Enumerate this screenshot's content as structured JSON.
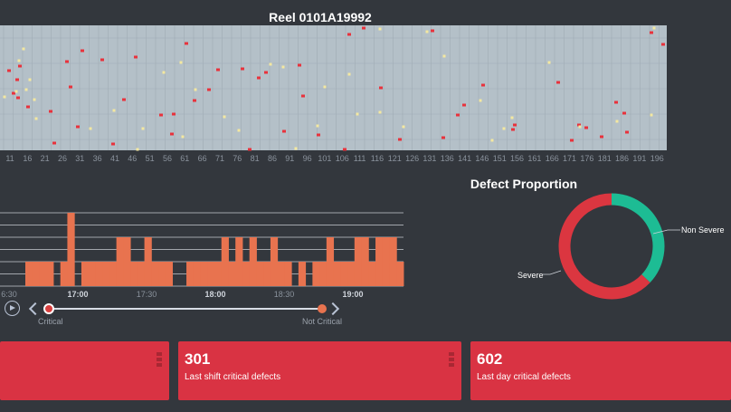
{
  "header": {
    "title": "Reel 0101A19992"
  },
  "reel_chart": {
    "x_ticks": [
      "11",
      "16",
      "21",
      "26",
      "31",
      "36",
      "41",
      "46",
      "51",
      "56",
      "61",
      "66",
      "71",
      "76",
      "81",
      "86",
      "91",
      "96",
      "101",
      "106",
      "111",
      "116",
      "121",
      "126",
      "131",
      "136",
      "141",
      "146",
      "151",
      "156",
      "161",
      "166",
      "171",
      "176",
      "181",
      "186",
      "191",
      "196"
    ],
    "critical_defects": [
      [
        10,
        50
      ],
      [
        15,
        75
      ],
      [
        19,
        60
      ],
      [
        20,
        80
      ],
      [
        22,
        45
      ],
      [
        31,
        90
      ],
      [
        56,
        95
      ],
      [
        60,
        130
      ],
      [
        74,
        40
      ],
      [
        78,
        68
      ],
      [
        86,
        112
      ],
      [
        91,
        28
      ],
      [
        113,
        38
      ],
      [
        125,
        131
      ],
      [
        137,
        82
      ],
      [
        150,
        35
      ],
      [
        178,
        99
      ],
      [
        190,
        120
      ],
      [
        192,
        98
      ],
      [
        206,
        20
      ],
      [
        215,
        83
      ],
      [
        231,
        71
      ],
      [
        241,
        49
      ],
      [
        268,
        48
      ],
      [
        276,
        137
      ],
      [
        286,
        58
      ],
      [
        294,
        52
      ],
      [
        314,
        117
      ],
      [
        331,
        44
      ],
      [
        335,
        78
      ],
      [
        352,
        121
      ],
      [
        381,
        137
      ],
      [
        386,
        10
      ],
      [
        402,
        3
      ],
      [
        421,
        69
      ],
      [
        442,
        126
      ],
      [
        478,
        6
      ],
      [
        490,
        124
      ],
      [
        506,
        99
      ],
      [
        513,
        88
      ],
      [
        534,
        66
      ],
      [
        567,
        115
      ],
      [
        569,
        110
      ],
      [
        617,
        63
      ],
      [
        632,
        127
      ],
      [
        640,
        110
      ],
      [
        648,
        113
      ],
      [
        665,
        123
      ],
      [
        681,
        85
      ],
      [
        690,
        97
      ],
      [
        693,
        118
      ],
      [
        720,
        8
      ],
      [
        733,
        21
      ]
    ],
    "non_critical_defects": [
      [
        5,
        79
      ],
      [
        18,
        73
      ],
      [
        21,
        39
      ],
      [
        26,
        26
      ],
      [
        29,
        71
      ],
      [
        33,
        60
      ],
      [
        38,
        82
      ],
      [
        40,
        103
      ],
      [
        100,
        114
      ],
      [
        126,
        94
      ],
      [
        152,
        137
      ],
      [
        158,
        114
      ],
      [
        181,
        52
      ],
      [
        200,
        41
      ],
      [
        202,
        123
      ],
      [
        216,
        71
      ],
      [
        248,
        101
      ],
      [
        264,
        116
      ],
      [
        299,
        43
      ],
      [
        313,
        46
      ],
      [
        327,
        136
      ],
      [
        351,
        111
      ],
      [
        359,
        68
      ],
      [
        386,
        54
      ],
      [
        395,
        98
      ],
      [
        420,
        4
      ],
      [
        420,
        96
      ],
      [
        446,
        112
      ],
      [
        472,
        7
      ],
      [
        491,
        34
      ],
      [
        531,
        83
      ],
      [
        544,
        127
      ],
      [
        557,
        114
      ],
      [
        566,
        102
      ],
      [
        607,
        41
      ],
      [
        641,
        112
      ],
      [
        682,
        106
      ],
      [
        720,
        99
      ],
      [
        723,
        3
      ]
    ]
  },
  "timeline": {
    "x_ticks": [
      "6:30",
      "17:00",
      "17:30",
      "18:00",
      "18:30",
      "19:00"
    ],
    "bold_ticks": [
      false,
      true,
      false,
      true,
      false,
      true
    ],
    "bar_values": [
      1,
      1,
      1,
      1,
      0,
      1,
      3,
      0,
      1,
      1,
      1,
      1,
      1,
      2,
      2,
      1,
      1,
      2,
      1,
      1,
      1,
      0,
      0,
      1,
      1,
      1,
      1,
      1,
      2,
      1,
      2,
      1,
      2,
      1,
      1,
      2,
      1,
      1,
      0,
      1,
      0,
      1,
      1,
      2,
      1,
      1,
      1,
      2,
      2,
      1,
      2,
      2,
      2,
      1
    ],
    "y_max": 3,
    "bar_color": "#e8734f"
  },
  "defect_proportion": {
    "title": "Defect Proportion",
    "segments": [
      {
        "name": "Non Severe",
        "value": 37,
        "color": "#1dbc94"
      },
      {
        "name": "Severe",
        "value": 63,
        "color": "#db3640"
      }
    ]
  },
  "slider": {
    "left_label": "Critical",
    "right_label": "Not Critical"
  },
  "cards": [
    {
      "value": "",
      "label": ""
    },
    {
      "value": "301",
      "label": "Last shift critical defects"
    },
    {
      "value": "602",
      "label": "Last day critical defects"
    }
  ],
  "colors": {
    "accent_red": "#d93343",
    "critical_marker": "#e8323c",
    "non_critical_marker": "#f4e8a0",
    "reel_bg": "#b4c0c8"
  }
}
